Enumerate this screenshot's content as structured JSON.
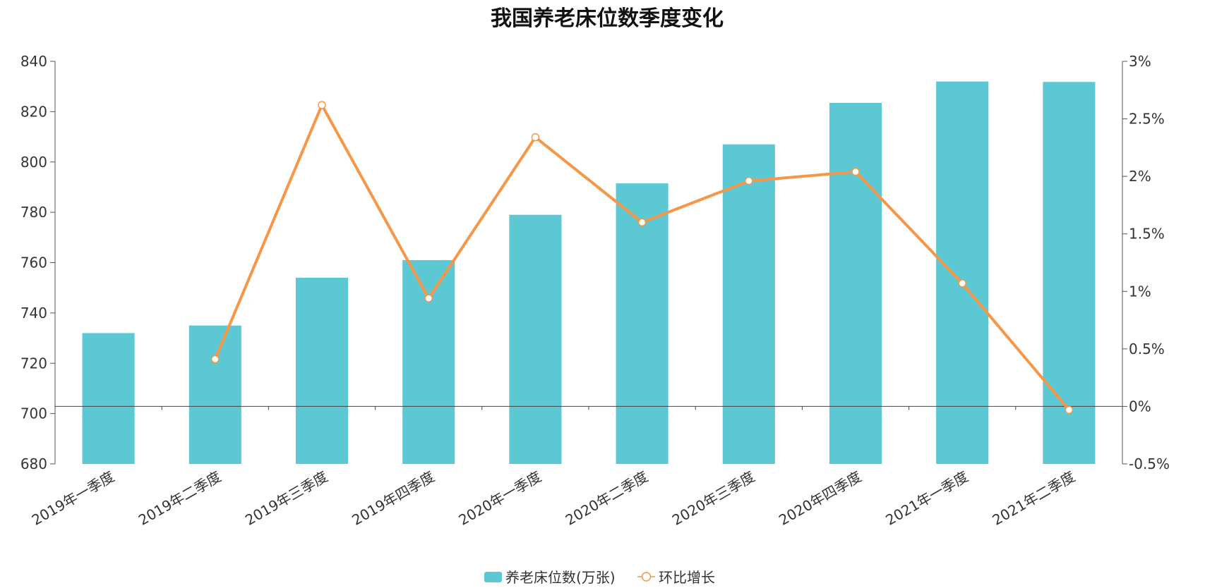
{
  "chart_data": {
    "type": "bar",
    "title": "我国养老床位数季度变化",
    "categories": [
      "2019年一季度",
      "2019年二季度",
      "2019年三季度",
      "2019年四季度",
      "2020年一季度",
      "2020年二季度",
      "2020年三季度",
      "2020年四季度",
      "2021年一季度",
      "2021年二季度"
    ],
    "series": [
      {
        "name": "养老床位数(万张)",
        "type": "bar",
        "axis": "left",
        "color": "#5BC8D4",
        "values": [
          732,
          735,
          754,
          761,
          779,
          791.5,
          807,
          823.5,
          832,
          831.8
        ]
      },
      {
        "name": "环比增长",
        "type": "line",
        "axis": "right",
        "color": "#F79646",
        "values": [
          null,
          0.41,
          2.62,
          0.94,
          2.34,
          1.6,
          1.96,
          2.04,
          1.07,
          -0.03
        ]
      }
    ],
    "ylim": [
      680,
      840
    ],
    "yticks": [
      "680",
      "700",
      "720",
      "740",
      "760",
      "780",
      "800",
      "820",
      "840"
    ],
    "y2lim": [
      -0.5,
      3
    ],
    "y2ticks": [
      "-0.5%",
      "0%",
      "0.5%",
      "1%",
      "1.5%",
      "2%",
      "2.5%",
      "3%"
    ],
    "legend_position": "bottom-center",
    "grid": false
  }
}
